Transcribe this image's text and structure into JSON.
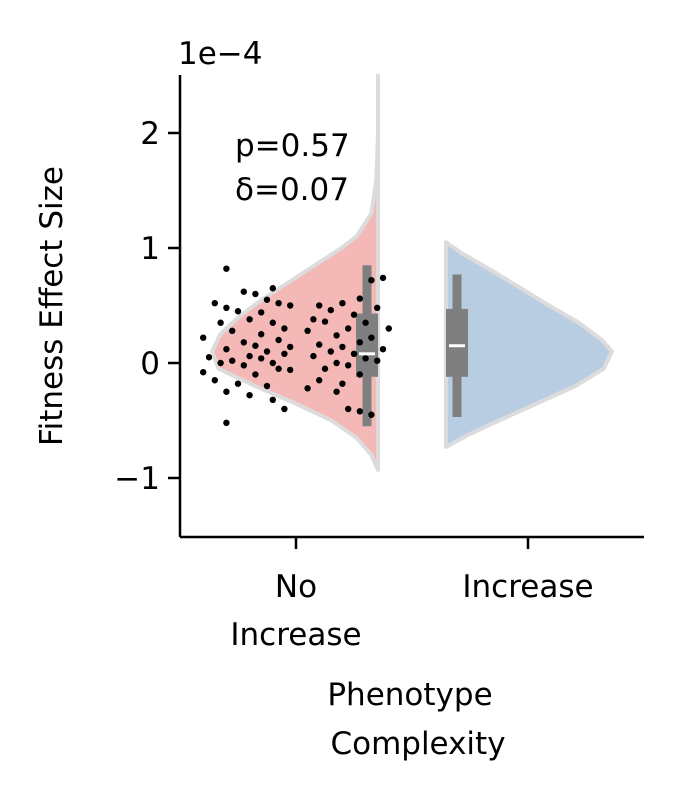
{
  "chart_data": {
    "type": "violin",
    "offset_text": "1e−4",
    "xlabel": [
      "Phenotype",
      "Complexity"
    ],
    "ylabel": "Fitness Effect Size",
    "ylim": [
      -1.5,
      2.5
    ],
    "yticks": [
      {
        "value": -1,
        "label": "−1"
      },
      {
        "value": 0,
        "label": "0"
      },
      {
        "value": 1,
        "label": "1"
      },
      {
        "value": 2,
        "label": "2"
      }
    ],
    "categories": [
      {
        "label": [
          "No",
          "Increase"
        ]
      },
      {
        "label": [
          "Increase"
        ]
      }
    ],
    "annotation": [
      "p=0.57",
      "δ=0.07"
    ],
    "colors": {
      "no_increase": "#f4b9b6",
      "increase": "#b8cce2",
      "violin_edge": "#dcdcdc",
      "box": "#7f7f7f",
      "median": "#ffffff",
      "points": "#000000"
    },
    "groups": [
      {
        "name": "No Increase",
        "box": {
          "q1": -0.12,
          "median": 0.08,
          "q3": 0.43,
          "whisker_low": -0.55,
          "whisker_high": 0.85
        },
        "violin_range": [
          -0.93,
          2.5
        ],
        "points": [
          [
            -0.6,
            0.82
          ],
          [
            -0.2,
            0.65
          ],
          [
            -0.45,
            0.62
          ],
          [
            -0.25,
            0.55
          ],
          [
            -0.35,
            0.6
          ],
          [
            -0.6,
            0.48
          ],
          [
            -0.7,
            0.52
          ],
          [
            -0.15,
            0.52
          ],
          [
            -0.5,
            0.45
          ],
          [
            -0.3,
            0.44
          ],
          [
            -0.05,
            0.5
          ],
          [
            -0.4,
            0.38
          ],
          [
            -0.65,
            0.35
          ],
          [
            -0.2,
            0.35
          ],
          [
            -0.1,
            0.3
          ],
          [
            -0.55,
            0.28
          ],
          [
            -0.3,
            0.25
          ],
          [
            -0.8,
            0.22
          ],
          [
            -0.45,
            0.18
          ],
          [
            -0.15,
            0.2
          ],
          [
            -0.35,
            0.15
          ],
          [
            -0.6,
            0.12
          ],
          [
            -0.05,
            0.14
          ],
          [
            -0.25,
            0.1
          ],
          [
            -0.75,
            0.05
          ],
          [
            -0.4,
            0.06
          ],
          [
            -0.1,
            0.08
          ],
          [
            -0.55,
            0.02
          ],
          [
            -0.3,
            0.04
          ],
          [
            -0.2,
            0.0
          ],
          [
            -0.65,
            0.0
          ],
          [
            -0.45,
            -0.02
          ],
          [
            -0.15,
            -0.05
          ],
          [
            -0.8,
            -0.08
          ],
          [
            -0.35,
            -0.1
          ],
          [
            -0.05,
            -0.06
          ],
          [
            -0.7,
            -0.15
          ],
          [
            -0.5,
            -0.18
          ],
          [
            -0.25,
            -0.2
          ],
          [
            -0.6,
            -0.25
          ],
          [
            -0.4,
            -0.28
          ],
          [
            -0.2,
            -0.32
          ],
          [
            -0.1,
            -0.4
          ],
          [
            -0.6,
            -0.52
          ]
        ]
      },
      {
        "name": "Increase",
        "box": {
          "q1": -0.12,
          "median": 0.15,
          "q3": 0.47,
          "whisker_low": -0.47,
          "whisker_high": 0.77
        },
        "violin_range": [
          -0.73,
          1.05
        ],
        "points": [
          [
            0.75,
            0.74
          ],
          [
            0.65,
            0.72
          ],
          [
            0.55,
            0.56
          ],
          [
            0.4,
            0.52
          ],
          [
            0.2,
            0.5
          ],
          [
            0.7,
            0.48
          ],
          [
            0.3,
            0.46
          ],
          [
            0.5,
            0.42
          ],
          [
            0.15,
            0.38
          ],
          [
            0.6,
            0.35
          ],
          [
            0.25,
            0.36
          ],
          [
            0.8,
            0.3
          ],
          [
            0.45,
            0.3
          ],
          [
            0.1,
            0.28
          ],
          [
            0.35,
            0.24
          ],
          [
            0.65,
            0.22
          ],
          [
            0.55,
            0.18
          ],
          [
            0.2,
            0.16
          ],
          [
            0.4,
            0.14
          ],
          [
            0.75,
            0.12
          ],
          [
            0.3,
            0.1
          ],
          [
            0.5,
            0.08
          ],
          [
            0.15,
            0.06
          ],
          [
            0.6,
            0.04
          ],
          [
            0.7,
            0.02
          ],
          [
            0.35,
            0.0
          ],
          [
            0.45,
            -0.02
          ],
          [
            0.25,
            -0.05
          ],
          [
            0.55,
            -0.1
          ],
          [
            0.2,
            -0.15
          ],
          [
            0.4,
            -0.18
          ],
          [
            0.1,
            -0.22
          ],
          [
            0.35,
            -0.25
          ],
          [
            0.45,
            -0.4
          ],
          [
            0.55,
            -0.42
          ],
          [
            0.65,
            -0.45
          ]
        ]
      }
    ]
  }
}
